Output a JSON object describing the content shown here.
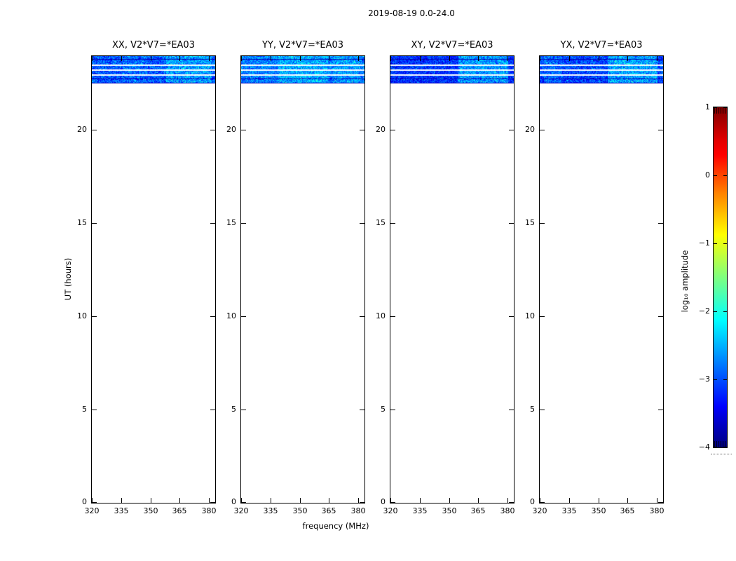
{
  "figure": {
    "title": "2019-08-19 0.0-24.0",
    "xlabel": "frequency (MHz)",
    "ylabel": "UT (hours)"
  },
  "chart_data": {
    "type": "heatmap",
    "title": "2019-08-19 0.0-24.0",
    "xlabel": "frequency (MHz)",
    "ylabel": "UT (hours)",
    "x_ticks": [
      320,
      335,
      350,
      365,
      380
    ],
    "x_range_mhz": [
      319.6,
      383.3
    ],
    "y_ticks": [
      0,
      5,
      10,
      15,
      20
    ],
    "y_range_hours": [
      0,
      24
    ],
    "grid": false,
    "colormap": "jet",
    "data_present_hours": [
      22.5,
      24.0
    ],
    "colorbar": {
      "label": "log₁₀ amplitude",
      "ticks": [
        1,
        0,
        -1,
        -2,
        -3,
        -4
      ],
      "range": [
        -4,
        1
      ],
      "position": "right"
    },
    "panels": [
      {
        "pol": "XX",
        "label": "XX, V2*V7=*EA03",
        "render": {
          "base": -2.95,
          "noise": 0.55,
          "patches": [
            {
              "x0": 0.6,
              "x1": 0.97,
              "boost": 0.55
            },
            {
              "x0": 0.25,
              "x1": 0.45,
              "boost": 0.15
            }
          ]
        }
      },
      {
        "pol": "YY",
        "label": "YY, V2*V7=*EA03",
        "render": {
          "base": -2.75,
          "noise": 0.5,
          "patches": [
            {
              "x0": 0.3,
              "x1": 0.7,
              "boost": 0.35
            },
            {
              "x0": 0.75,
              "x1": 0.95,
              "boost": 0.25
            }
          ]
        }
      },
      {
        "pol": "XY",
        "label": "XY, V2*V7=*EA03",
        "render": {
          "base": -3.15,
          "noise": 0.45,
          "patches": [
            {
              "x0": 0.55,
              "x1": 0.95,
              "boost": 0.85
            }
          ]
        }
      },
      {
        "pol": "YX",
        "label": "YX, V2*V7=*EA03",
        "render": {
          "base": -3.05,
          "noise": 0.5,
          "patches": [
            {
              "x0": 0.55,
              "x1": 0.95,
              "boost": 0.75
            },
            {
              "x0": 0.03,
              "x1": 0.18,
              "boost": 0.25
            }
          ]
        }
      }
    ],
    "subbands": [
      {
        "y": 0,
        "h": 4,
        "t": "d"
      },
      {
        "y": 4,
        "h": 1,
        "t": "k"
      },
      {
        "y": 5,
        "h": 7,
        "t": "d"
      },
      {
        "y": 12,
        "h": 2,
        "t": "w"
      },
      {
        "y": 14,
        "h": 5,
        "t": "d"
      },
      {
        "y": 19,
        "h": 2,
        "t": "w"
      },
      {
        "y": 21,
        "h": 5,
        "t": "d"
      },
      {
        "y": 26,
        "h": 2,
        "t": "w"
      },
      {
        "y": 28,
        "h": 4,
        "t": "d"
      },
      {
        "y": 32,
        "h": 1,
        "t": "k"
      },
      {
        "y": 33,
        "h": 5,
        "t": "d"
      },
      {
        "y": 38,
        "h": 1,
        "t": "k"
      }
    ]
  }
}
